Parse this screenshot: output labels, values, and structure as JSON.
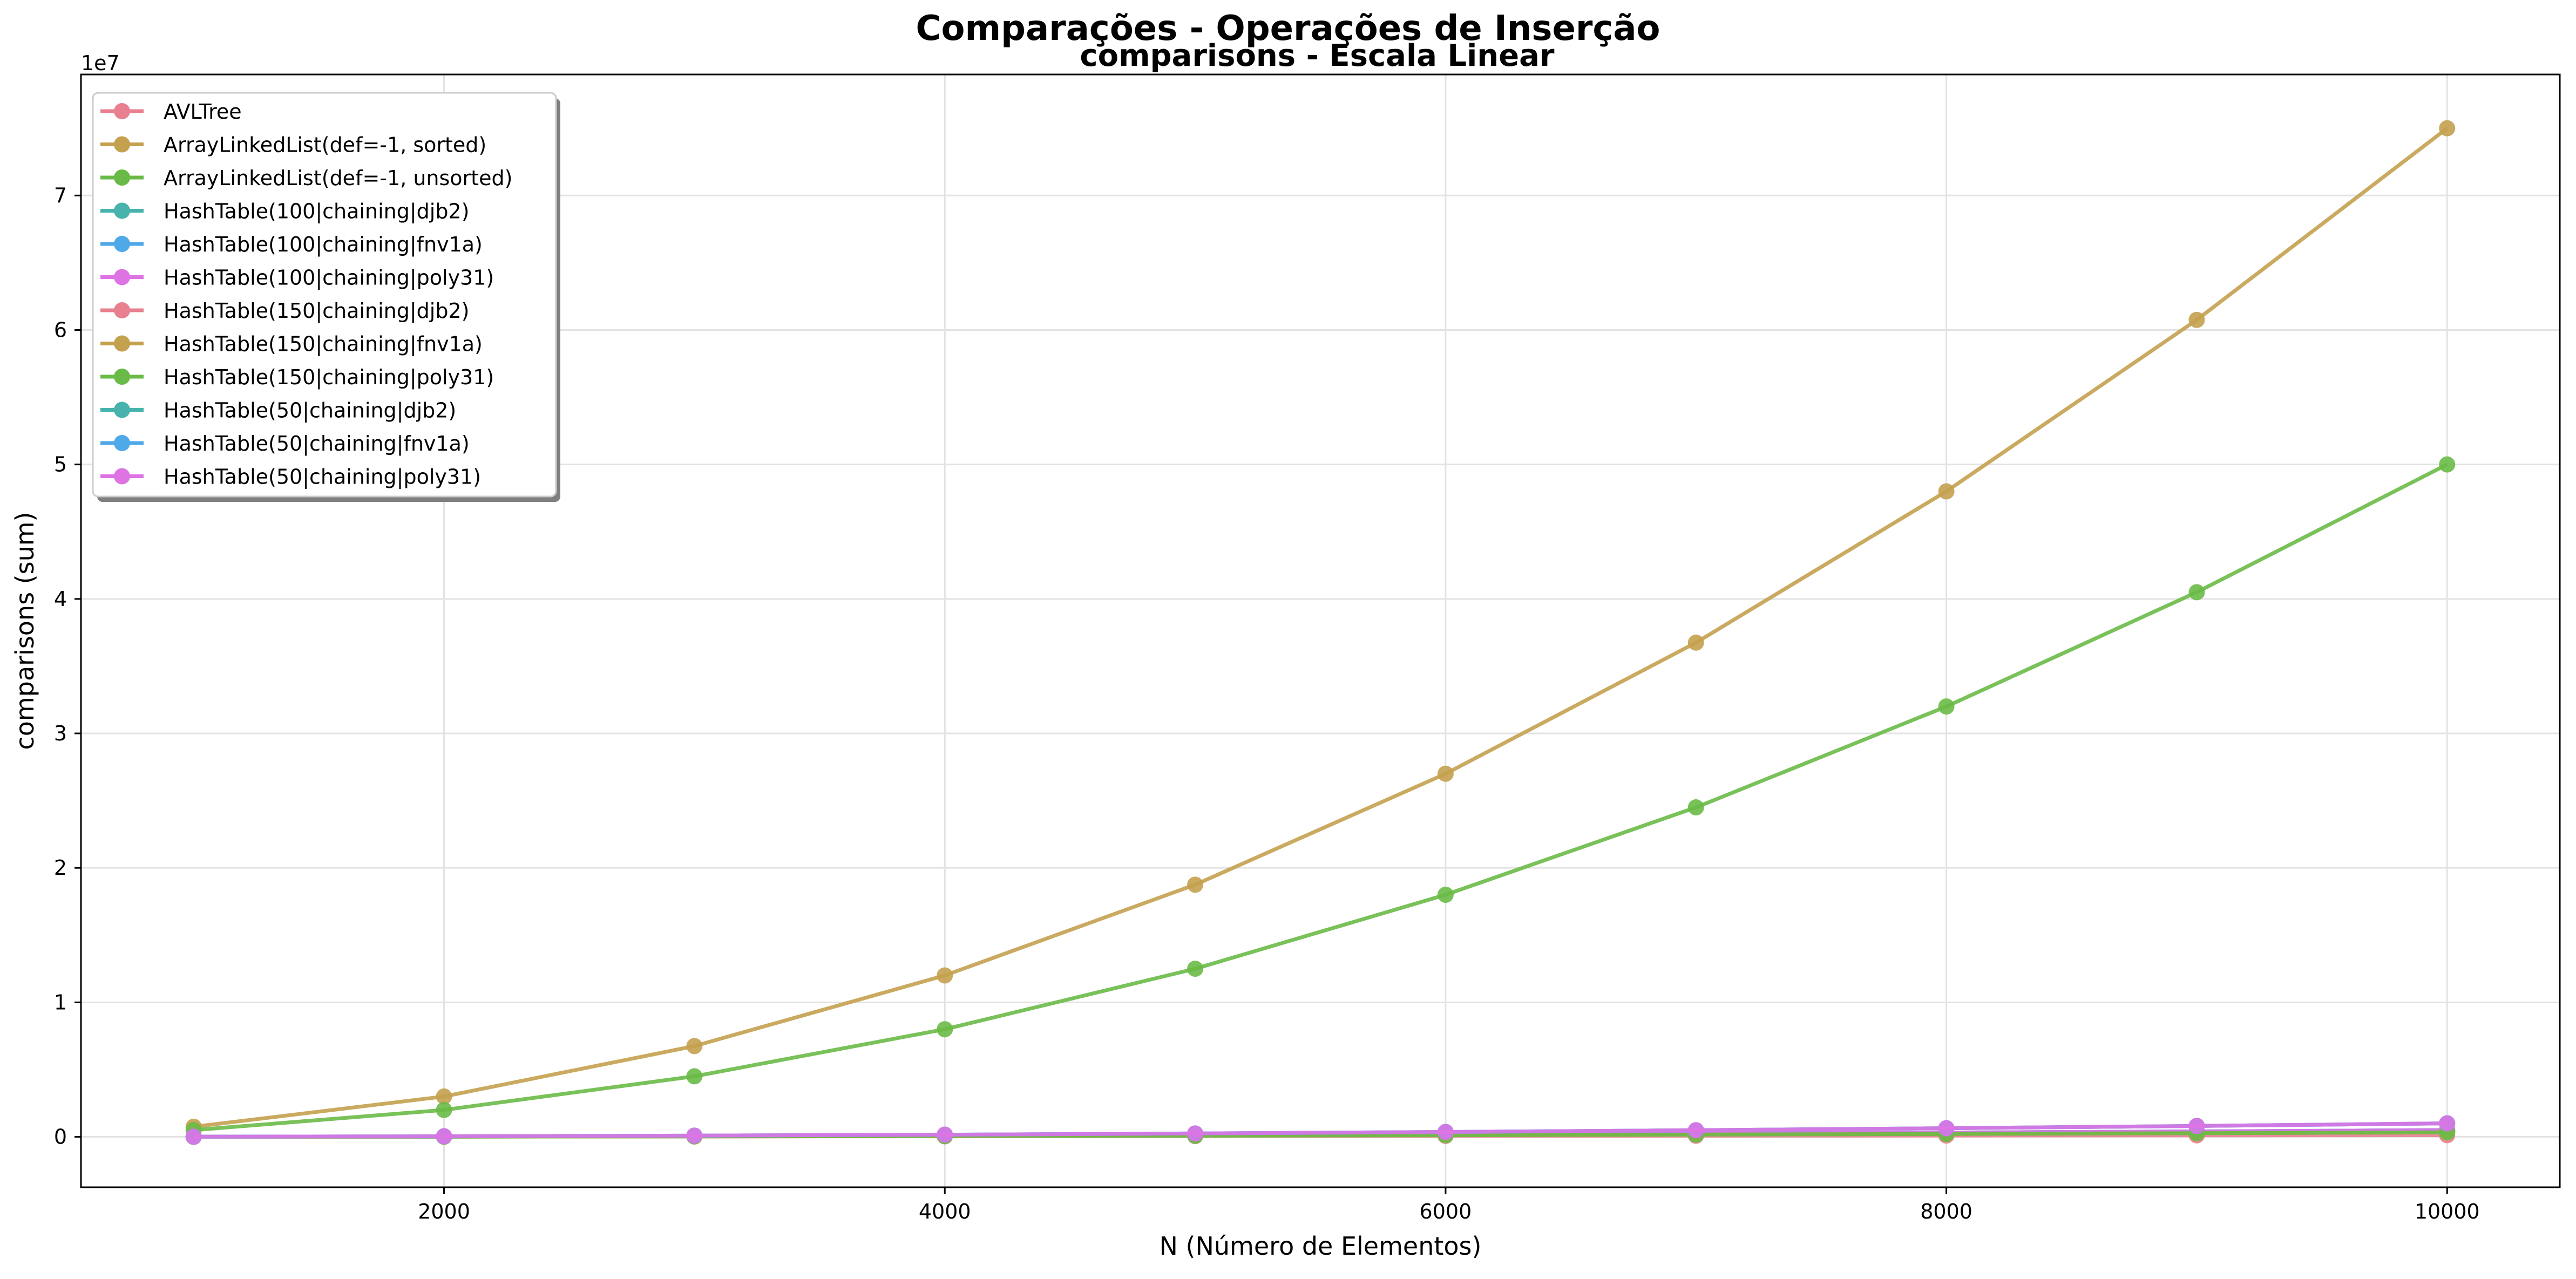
{
  "chart_data": {
    "type": "line",
    "title": "Comparações - Operações de Inserção",
    "subtitle": "comparisons - Escala Linear",
    "xlabel": "N (Número de Elementos)",
    "ylabel": "comparisons (sum)",
    "y_offset_label": "1e7",
    "xlim": [
      550,
      10450
    ],
    "ylim": [
      -3750000,
      79000000
    ],
    "x_ticks": [
      2000,
      4000,
      6000,
      8000,
      10000
    ],
    "y_ticks": [
      0,
      10000000,
      20000000,
      30000000,
      40000000,
      50000000,
      60000000,
      70000000
    ],
    "y_tick_labels": [
      "0",
      "1",
      "2",
      "3",
      "4",
      "5",
      "6",
      "7"
    ],
    "grid": true,
    "legend_position": "top-left",
    "x": [
      1000,
      2000,
      3000,
      4000,
      5000,
      6000,
      7000,
      8000,
      9000,
      10000
    ],
    "series": [
      {
        "name": "AVLTree",
        "color": "#e8808f",
        "values": [
          9000,
          20000,
          32000,
          44000,
          57000,
          70000,
          83000,
          96000,
          110000,
          124000
        ]
      },
      {
        "name": "ArrayLinkedList(def=-1, sorted)",
        "color": "#c4a14f",
        "values": [
          750000,
          3000000,
          6750000,
          12000000,
          18750000,
          27000000,
          36750000,
          48000000,
          60750000,
          75000000
        ]
      },
      {
        "name": "ArrayLinkedList(def=-1, unsorted)",
        "color": "#6aba47",
        "values": [
          500000,
          2000000,
          4500000,
          8000000,
          12500000,
          18000000,
          24500000,
          32000000,
          40500000,
          50000000
        ]
      },
      {
        "name": "HashTable(100|chaining|djb2)",
        "color": "#47b3ac",
        "values": [
          5000,
          20000,
          45000,
          80000,
          125000,
          180000,
          245000,
          320000,
          405000,
          500000
        ]
      },
      {
        "name": "HashTable(100|chaining|fnv1a)",
        "color": "#4fa9e8",
        "values": [
          5000,
          20000,
          45000,
          80000,
          125000,
          180000,
          245000,
          320000,
          405000,
          500000
        ]
      },
      {
        "name": "HashTable(100|chaining|poly31)",
        "color": "#de73e3",
        "values": [
          5000,
          20000,
          45000,
          80000,
          125000,
          180000,
          245000,
          320000,
          405000,
          500000
        ]
      },
      {
        "name": "HashTable(150|chaining|djb2)",
        "color": "#e8808f",
        "values": [
          3300,
          13300,
          30000,
          53300,
          83300,
          120000,
          163300,
          213300,
          270000,
          333300
        ]
      },
      {
        "name": "HashTable(150|chaining|fnv1a)",
        "color": "#c4a14f",
        "values": [
          3300,
          13300,
          30000,
          53300,
          83300,
          120000,
          163300,
          213300,
          270000,
          333300
        ]
      },
      {
        "name": "HashTable(150|chaining|poly31)",
        "color": "#6aba47",
        "values": [
          3300,
          13300,
          30000,
          53300,
          83300,
          120000,
          163300,
          213300,
          270000,
          333300
        ]
      },
      {
        "name": "HashTable(50|chaining|djb2)",
        "color": "#47b3ac",
        "values": [
          10000,
          40000,
          90000,
          160000,
          250000,
          360000,
          490000,
          640000,
          810000,
          1000000
        ]
      },
      {
        "name": "HashTable(50|chaining|fnv1a)",
        "color": "#4fa9e8",
        "values": [
          10000,
          40000,
          90000,
          160000,
          250000,
          360000,
          490000,
          640000,
          810000,
          1000000
        ]
      },
      {
        "name": "HashTable(50|chaining|poly31)",
        "color": "#de73e3",
        "values": [
          10000,
          40000,
          90000,
          160000,
          250000,
          360000,
          490000,
          640000,
          810000,
          1000000
        ]
      }
    ]
  }
}
